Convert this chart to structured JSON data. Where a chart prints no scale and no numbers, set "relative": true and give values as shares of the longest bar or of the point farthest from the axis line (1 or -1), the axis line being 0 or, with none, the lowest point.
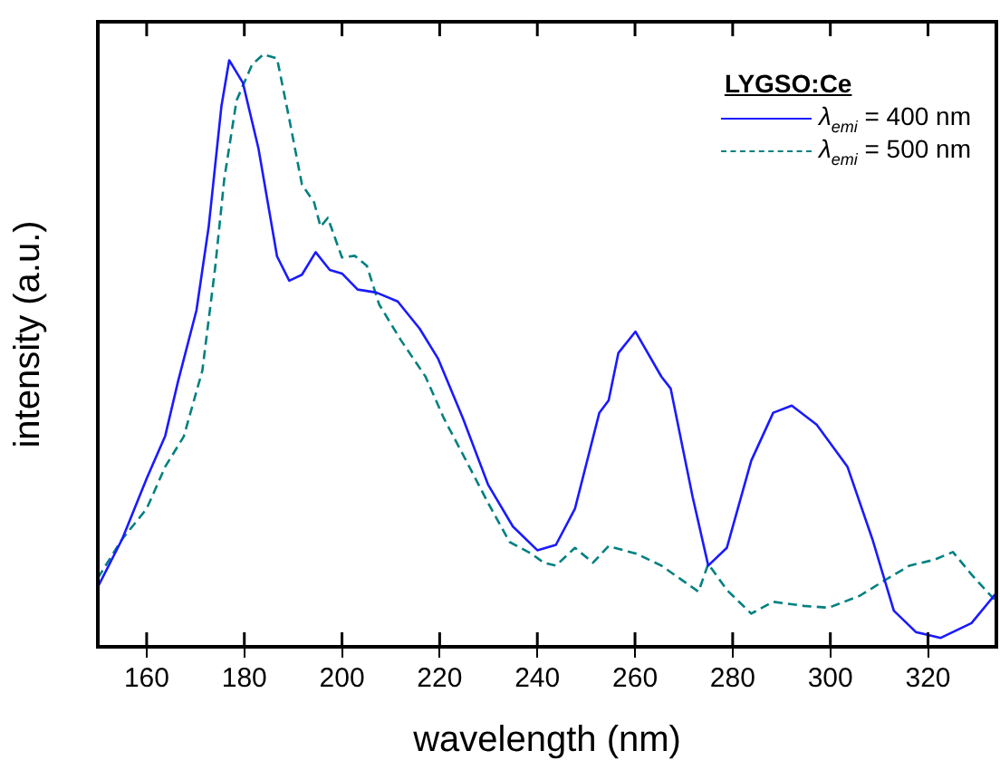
{
  "chart_data": {
    "type": "line",
    "xlabel": "wavelength (nm)",
    "ylabel": "intensity (a.u.)",
    "legend_title": "LYGSO:Ce",
    "legend": "top right",
    "relative": true,
    "tick_labels": "x",
    "grid": false,
    "marker": "none",
    "xlim": [
      150,
      334
    ],
    "xticks": [
      160,
      180,
      200,
      220,
      240,
      260,
      280,
      300,
      320
    ],
    "series": [
      {
        "name": "λ$_{emi}$ = 400 nm",
        "color": "#1a1aff",
        "line_style": "solid",
        "x": [
          150,
          155,
          160,
          163.8,
          166.4,
          170.2,
          172.7,
          175.3,
          176.9,
          179.7,
          182.9,
          186.7,
          189.2,
          191.8,
          194.6,
          197.5,
          200,
          203.2,
          207,
          211.4,
          215.9,
          219.7,
          224.8,
          229.9,
          235,
          240,
          243.8,
          247.7,
          252.7,
          254.6,
          256.6,
          260.1,
          265.4,
          267.3,
          271.8,
          275,
          278.8,
          283.8,
          288.3,
          292.1,
          297.2,
          303.5,
          308.6,
          313,
          317.5,
          322.6,
          328.9,
          334
        ],
        "values": [
          0.101,
          0.182,
          0.284,
          0.356,
          0.447,
          0.568,
          0.709,
          0.912,
          0.99,
          0.952,
          0.841,
          0.659,
          0.618,
          0.628,
          0.666,
          0.636,
          0.63,
          0.603,
          0.598,
          0.583,
          0.537,
          0.486,
          0.385,
          0.274,
          0.203,
          0.163,
          0.172,
          0.233,
          0.395,
          0.416,
          0.496,
          0.532,
          0.456,
          0.436,
          0.253,
          0.137,
          0.167,
          0.314,
          0.395,
          0.407,
          0.375,
          0.304,
          0.182,
          0.061,
          0.025,
          0.015,
          0.04,
          0.091
        ]
      },
      {
        "name": "λ$_{emi}$ = 500 nm",
        "color": "#008080",
        "line_style": "dashed",
        "x": [
          150,
          155,
          160,
          163.8,
          167.6,
          171.4,
          174,
          175.9,
          178.4,
          181.6,
          183.9,
          186.7,
          189.2,
          191.8,
          194.3,
          195.6,
          197.1,
          200,
          202.6,
          205.1,
          207.6,
          212.1,
          217.1,
          220.9,
          224.8,
          229.9,
          234.3,
          238.8,
          241.3,
          243.8,
          247.7,
          251.4,
          254.6,
          260.3,
          265.4,
          273,
          275,
          278.8,
          283.8,
          288.3,
          294.6,
          299.7,
          306,
          311.1,
          316.2,
          321.3,
          325.1,
          328.9,
          334
        ],
        "values": [
          0.116,
          0.182,
          0.233,
          0.304,
          0.355,
          0.466,
          0.638,
          0.79,
          0.922,
          0.983,
          1,
          0.993,
          0.891,
          0.78,
          0.75,
          0.709,
          0.724,
          0.657,
          0.66,
          0.643,
          0.578,
          0.517,
          0.456,
          0.385,
          0.324,
          0.243,
          0.177,
          0.157,
          0.142,
          0.137,
          0.167,
          0.142,
          0.17,
          0.157,
          0.137,
          0.093,
          0.14,
          0.096,
          0.056,
          0.076,
          0.069,
          0.066,
          0.086,
          0.112,
          0.137,
          0.147,
          0.16,
          0.122,
          0.076
        ]
      }
    ]
  }
}
